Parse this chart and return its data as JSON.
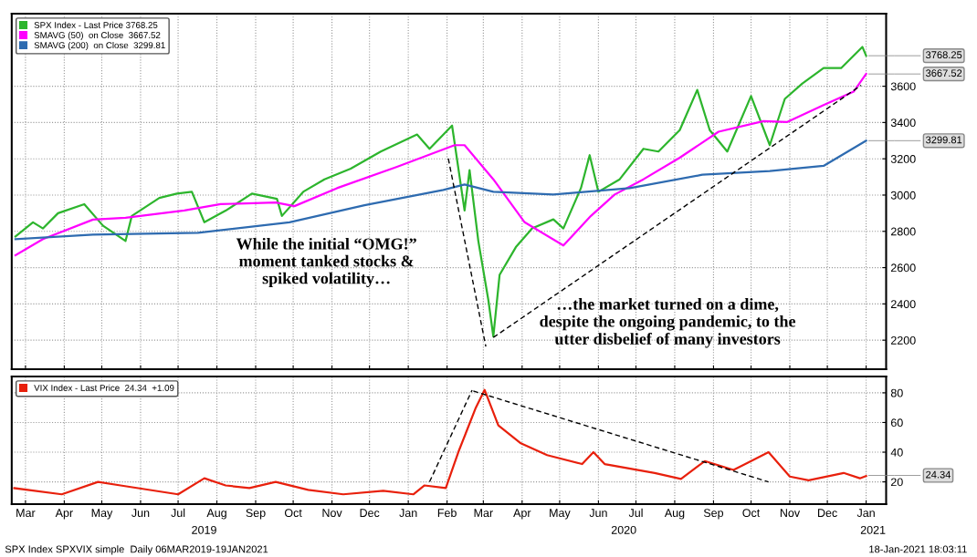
{
  "chart_data": [
    {
      "type": "line",
      "legend": "top left",
      "grid": true,
      "tick_labels": "y",
      "marker": "none",
      "xlim": [
        "2019-03-04",
        "2021-01-31"
      ],
      "ylim": [
        2040,
        4000
      ],
      "yticks": [
        2200,
        2400,
        2600,
        2800,
        3000,
        3200,
        3400,
        3600
      ],
      "xticks": [
        {
          "value": "2019-03-15",
          "label": null
        },
        {
          "value": "2019-04-15",
          "label": null
        },
        {
          "value": "2019-05-15",
          "label": null
        },
        {
          "value": "2019-06-15",
          "label": null
        },
        {
          "value": "2019-07-15",
          "label": null
        },
        {
          "value": "2019-08-15",
          "label": null
        },
        {
          "value": "2019-09-15",
          "label": null
        },
        {
          "value": "2019-10-15",
          "label": null
        },
        {
          "value": "2019-11-15",
          "label": null
        },
        {
          "value": "2019-12-15",
          "label": null
        },
        {
          "value": "2020-01-15",
          "label": null
        },
        {
          "value": "2020-02-15",
          "label": null
        },
        {
          "value": "2020-03-15",
          "label": null
        },
        {
          "value": "2020-04-15",
          "label": null
        },
        {
          "value": "2020-05-15",
          "label": null
        },
        {
          "value": "2020-06-15",
          "label": null
        },
        {
          "value": "2020-07-15",
          "label": null
        },
        {
          "value": "2020-08-15",
          "label": null
        },
        {
          "value": "2020-09-15",
          "label": null
        },
        {
          "value": "2020-10-15",
          "label": null
        },
        {
          "value": "2020-11-15",
          "label": null
        },
        {
          "value": "2020-12-15",
          "label": null
        },
        {
          "value": "2021-01-15",
          "label": null
        }
      ],
      "series": [
        {
          "name": "SPX Index - Last Price 3768.25",
          "color": "#2db52d",
          "x": [
            "2019-03-07",
            "2019-03-21",
            "2019-03-29",
            "2019-04-10",
            "2019-05-01",
            "2019-05-16",
            "2019-06-03",
            "2019-06-08",
            "2019-06-30",
            "2019-07-14",
            "2019-07-26",
            "2019-08-05",
            "2019-08-22",
            "2019-09-12",
            "2019-10-02",
            "2019-10-06",
            "2019-10-23",
            "2019-11-09",
            "2019-11-30",
            "2019-12-24",
            "2020-01-22",
            "2020-02-01",
            "2020-02-19",
            "2020-02-29",
            "2020-03-04",
            "2020-03-11",
            "2020-03-19",
            "2020-03-23",
            "2020-03-28",
            "2020-04-10",
            "2020-04-23",
            "2020-05-10",
            "2020-05-18",
            "2020-06-01",
            "2020-06-08",
            "2020-06-15",
            "2020-07-02",
            "2020-07-21",
            "2020-08-02",
            "2020-08-19",
            "2020-09-02",
            "2020-09-12",
            "2020-09-26",
            "2020-10-15",
            "2020-10-30",
            "2020-11-11",
            "2020-11-25",
            "2020-12-12",
            "2020-12-26",
            "2021-01-12",
            "2021-01-15"
          ],
          "values": [
            2772,
            2850,
            2816,
            2900,
            2950,
            2831,
            2747,
            2885,
            2984,
            3008,
            3018,
            2850,
            2914,
            3008,
            2979,
            2885,
            3018,
            3087,
            3146,
            3240,
            3334,
            3255,
            3383,
            2915,
            3137,
            2747,
            2422,
            2220,
            2560,
            2713,
            2816,
            2866,
            2816,
            3038,
            3220,
            3018,
            3087,
            3255,
            3240,
            3358,
            3580,
            3358,
            3240,
            3546,
            3275,
            3530,
            3615,
            3700,
            3700,
            3817,
            3768
          ]
        },
        {
          "name": "SMAVG (50)  on Close  3667.52",
          "color": "#ff00ff",
          "x": [
            "2019-03-07",
            "2019-03-29",
            "2019-05-08",
            "2019-06-03",
            "2019-07-20",
            "2019-08-18",
            "2019-10-01",
            "2019-10-16",
            "2019-11-19",
            "2020-01-06",
            "2020-02-21",
            "2020-02-29",
            "2020-03-23",
            "2020-04-17",
            "2020-05-18",
            "2020-06-09",
            "2020-06-28",
            "2020-07-21",
            "2020-08-19",
            "2020-09-19",
            "2020-10-25",
            "2020-11-13",
            "2020-12-12",
            "2021-01-05",
            "2021-01-15"
          ],
          "values": [
            2668,
            2757,
            2865,
            2875,
            2915,
            2950,
            2959,
            2939,
            3038,
            3156,
            3275,
            3275,
            3087,
            2850,
            2722,
            2885,
            3003,
            3087,
            3206,
            3349,
            3408,
            3403,
            3496,
            3570,
            3668
          ]
        },
        {
          "name": "SMAVG (200)  on Close  3299.81",
          "color": "#2e6bb0",
          "x": [
            "2019-03-07",
            "2019-05-08",
            "2019-07-31",
            "2019-10-12",
            "2019-12-11",
            "2020-02-12",
            "2020-02-29",
            "2020-03-23",
            "2020-05-10",
            "2020-07-10",
            "2020-09-06",
            "2020-10-30",
            "2020-12-12",
            "2021-01-15"
          ],
          "values": [
            2757,
            2782,
            2792,
            2850,
            2944,
            3028,
            3058,
            3018,
            3003,
            3038,
            3112,
            3132,
            3161,
            3300
          ]
        },
        {
          "color": "#000000",
          "line_style": "dashed",
          "x": [
            "2020-02-16",
            "2020-03-17"
          ],
          "values": [
            3201,
            2165
          ]
        },
        {
          "color": "#000000",
          "line_style": "dashed",
          "x": [
            "2020-03-23",
            "2021-01-11"
          ],
          "values": [
            2215,
            3605
          ]
        }
      ],
      "annotations": [
        "While the initial “OMG!”\nmoment tanked stocks &\nspiked volatility…",
        "…the market turned on a dime,\ndespite the ongoing pandemic, to the\nutter disbelief of many investors",
        {
          "text": "3768.25",
          "x": "2021-01-15",
          "y": 3768.25
        },
        {
          "text": "3667.52",
          "x": "2021-01-15",
          "y": 3667.52
        },
        {
          "text": "3299.81",
          "x": "2021-01-15",
          "y": 3299.81
        }
      ]
    },
    {
      "type": "line",
      "legend": "top left",
      "grid": true,
      "marker": "none",
      "xlim": [
        "2019-03-04",
        "2021-01-31"
      ],
      "ylim": [
        5,
        91
      ],
      "yticks": [
        20,
        40,
        60,
        80
      ],
      "xticks": [
        {
          "value": "2019-03-15",
          "label": "Mar"
        },
        {
          "value": "2019-04-15",
          "label": "Apr"
        },
        {
          "value": "2019-05-15",
          "label": "May"
        },
        {
          "value": "2019-06-15",
          "label": "Jun"
        },
        {
          "value": "2019-07-15",
          "label": "Jul"
        },
        {
          "value": "2019-08-15",
          "label": "Aug"
        },
        {
          "value": "2019-09-15",
          "label": "Sep"
        },
        {
          "value": "2019-10-15",
          "label": "Oct"
        },
        {
          "value": "2019-11-15",
          "label": "Nov"
        },
        {
          "value": "2019-12-15",
          "label": "Dec"
        },
        {
          "value": "2020-01-15",
          "label": "Jan"
        },
        {
          "value": "2020-02-15",
          "label": "Feb"
        },
        {
          "value": "2020-03-15",
          "label": "Mar"
        },
        {
          "value": "2020-04-15",
          "label": "Apr"
        },
        {
          "value": "2020-05-15",
          "label": "May"
        },
        {
          "value": "2020-06-15",
          "label": "Jun"
        },
        {
          "value": "2020-07-15",
          "label": "Jul"
        },
        {
          "value": "2020-08-15",
          "label": "Aug"
        },
        {
          "value": "2020-09-15",
          "label": "Sep"
        },
        {
          "value": "2020-10-15",
          "label": "Oct"
        },
        {
          "value": "2020-11-15",
          "label": "Nov"
        },
        {
          "value": "2020-12-15",
          "label": "Dec"
        },
        {
          "value": "2021-01-15",
          "label": "Jan"
        }
      ],
      "series": [
        {
          "name": "VIX Index - Last Price  24.34  +1.09",
          "color": "#e8200c",
          "x": [
            "2019-03-06",
            "2019-04-13",
            "2019-05-12",
            "2019-05-30",
            "2019-07-15",
            "2019-08-05",
            "2019-08-22",
            "2019-09-10",
            "2019-10-01",
            "2019-10-27",
            "2019-11-24",
            "2019-12-26",
            "2020-01-19",
            "2020-01-28",
            "2020-02-14",
            "2020-02-24",
            "2020-03-09",
            "2020-03-16",
            "2020-03-27",
            "2020-04-14",
            "2020-05-05",
            "2020-06-02",
            "2020-06-11",
            "2020-06-20",
            "2020-07-30",
            "2020-08-20",
            "2020-09-08",
            "2020-10-01",
            "2020-10-29",
            "2020-11-15",
            "2020-11-30",
            "2020-12-28",
            "2021-01-10",
            "2021-01-15"
          ],
          "values": [
            15.8,
            11.6,
            20,
            17.6,
            11.6,
            22.4,
            17.6,
            15.8,
            20,
            14.6,
            11.6,
            14,
            11.6,
            17.6,
            15.8,
            40,
            70,
            82,
            58,
            46,
            38,
            32,
            40,
            32,
            26,
            22,
            34,
            28,
            40,
            23.6,
            21,
            26,
            22.4,
            24
          ]
        },
        {
          "color": "#000000",
          "line_style": "dashed",
          "x": [
            "2020-02-01",
            "2020-03-06"
          ],
          "values": [
            20,
            81.8
          ]
        },
        {
          "color": "#000000",
          "line_style": "dashed",
          "x": [
            "2020-03-07",
            "2020-10-29"
          ],
          "values": [
            81.2,
            20
          ]
        }
      ],
      "annotations": [
        {
          "text": "24.34",
          "x": "2021-01-15",
          "y": 24.34
        },
        "2019",
        "2020",
        "2021",
        "SPX Index SPXVIX simple  Daily 06MAR2019-19JAN2021",
        "18-Jan-2021 18:03:11"
      ]
    }
  ]
}
